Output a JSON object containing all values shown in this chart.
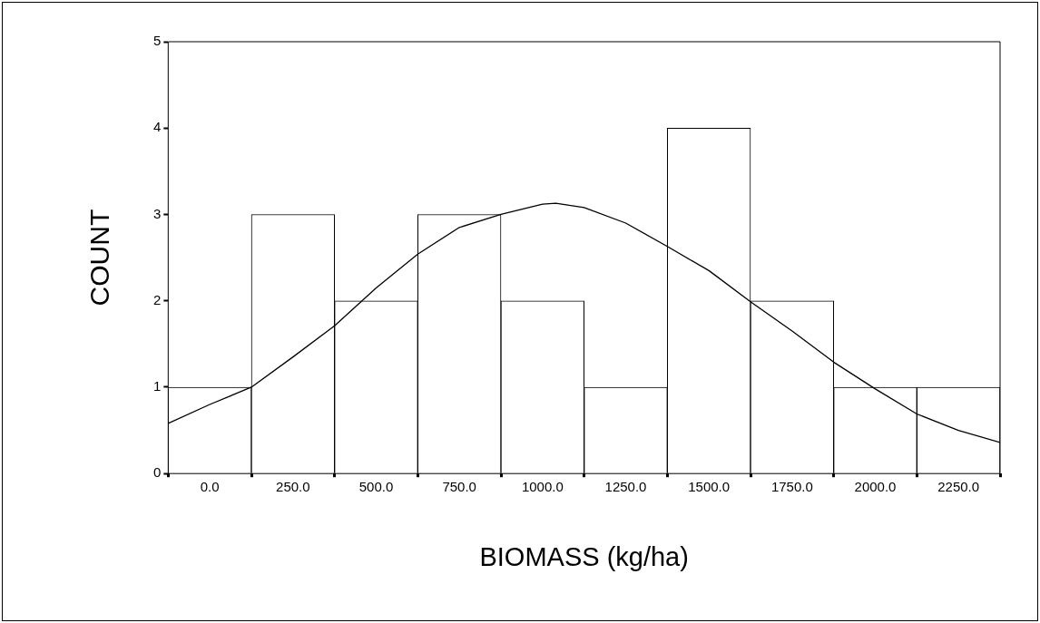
{
  "chart_data": {
    "type": "histogram",
    "xlabel": "BIOMASS (kg/ha)",
    "ylabel": "COUNT",
    "bins": [
      -125,
      125,
      375,
      625,
      875,
      1125,
      1375,
      1625,
      1875,
      2125,
      2375
    ],
    "values": [
      1,
      3,
      2,
      3,
      2,
      1,
      4,
      2,
      1,
      1
    ],
    "color": "#ffffff",
    "series": [
      {
        "type": "line",
        "color": "#000000",
        "x": [
          -125,
          0,
          125,
          250,
          375,
          500,
          625,
          750,
          875,
          1000,
          1040,
          1125,
          1250,
          1375,
          1500,
          1625,
          1750,
          1875,
          2000,
          2125,
          2250,
          2375
        ],
        "values": [
          0.58,
          0.8,
          1.0,
          1.35,
          1.71,
          2.15,
          2.54,
          2.85,
          3.0,
          3.12,
          3.13,
          3.08,
          2.9,
          2.63,
          2.35,
          1.99,
          1.65,
          1.29,
          0.98,
          0.69,
          0.5,
          0.36
        ]
      }
    ],
    "xlim": [
      -125,
      2375
    ],
    "ylim": [
      0,
      5
    ],
    "xticks": [
      {
        "value": 0,
        "label": "0.0"
      },
      {
        "value": 250,
        "label": "250.0"
      },
      {
        "value": 500,
        "label": "500.0"
      },
      {
        "value": 750,
        "label": "750.0"
      },
      {
        "value": 1000,
        "label": "1000.0"
      },
      {
        "value": 1250,
        "label": "1250.0"
      },
      {
        "value": 1500,
        "label": "1500.0"
      },
      {
        "value": 1750,
        "label": "1750.0"
      },
      {
        "value": 2000,
        "label": "2000.0"
      },
      {
        "value": 2250,
        "label": "2250.0"
      }
    ],
    "yticks": [
      0,
      1,
      2,
      3,
      4,
      5
    ],
    "grid": false,
    "legend": false,
    "marker": "none"
  }
}
